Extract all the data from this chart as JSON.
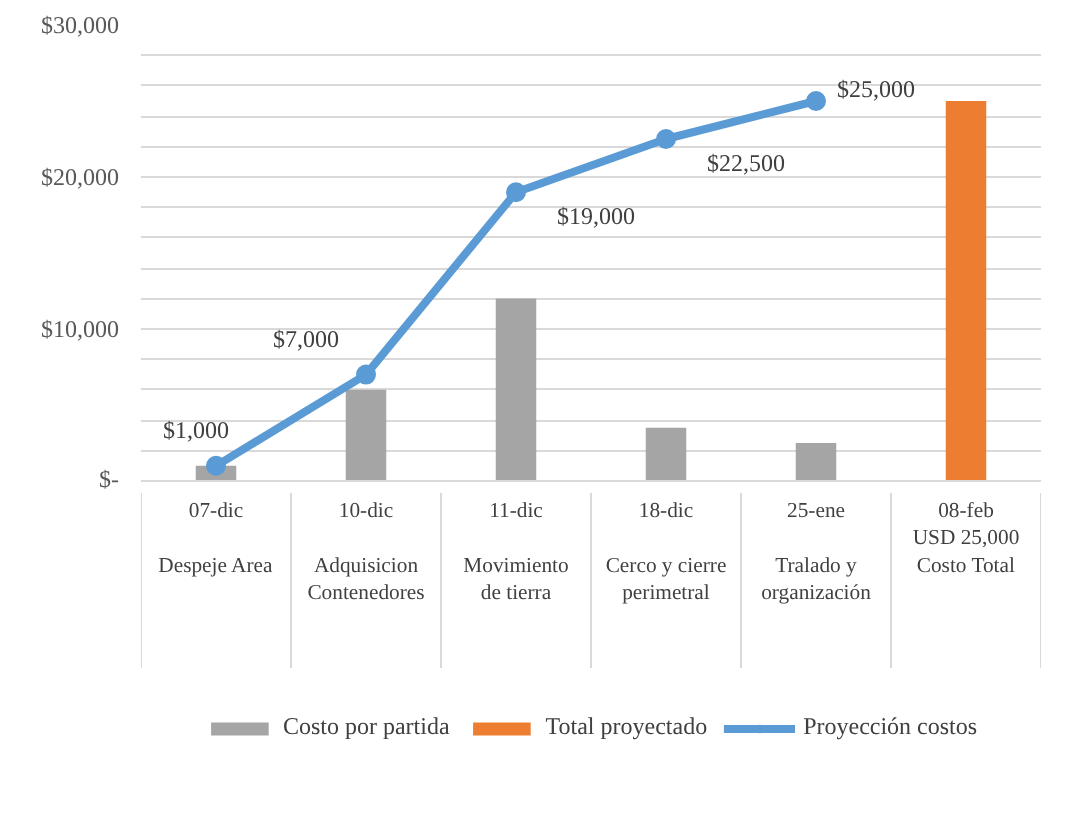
{
  "chart_data": {
    "type": "bar",
    "stacked": true,
    "categories": [
      "07-dic\n\nDespeje Area",
      "10-dic\n\nAdquisicion\nContenedores",
      "11-dic\n\nMovimiento\nde tierra",
      "18-dic\n\nCerco y cierre\nperimetral",
      "25-ene\n\nTralado y\norganización",
      "08-feb\nUSD 25,000\nCosto Total"
    ],
    "series": [
      {
        "name": "Costo por partida",
        "color": "#a5a5a5",
        "values": [
          1000,
          6000,
          12000,
          3500,
          2500,
          null
        ]
      },
      {
        "name": "Total proyectado",
        "color": "#ed7d31",
        "values": [
          null,
          null,
          null,
          null,
          null,
          25000
        ]
      },
      {
        "name": "Proyección costos",
        "type": "line",
        "color": "#5b9bd5",
        "marker": "circle",
        "values": [
          1000,
          7000,
          19000,
          22500,
          25000,
          null
        ],
        "value_labels": [
          "$1,000",
          "$7,000",
          "$19,000",
          "$22,500",
          "$25,000",
          null
        ]
      }
    ],
    "ylim": [
      0,
      30000
    ],
    "yticks": [
      {
        "value": 0,
        "label": "$-"
      },
      {
        "value": 2000,
        "label": null
      },
      {
        "value": 4000,
        "label": null
      },
      {
        "value": 6000,
        "label": null
      },
      {
        "value": 8000,
        "label": null
      },
      {
        "value": 10000,
        "label": "$10,000"
      },
      {
        "value": 12000,
        "label": null
      },
      {
        "value": 14000,
        "label": null
      },
      {
        "value": 16000,
        "label": null
      },
      {
        "value": 18000,
        "label": null
      },
      {
        "value": 20000,
        "label": "$20,000"
      },
      {
        "value": 22000,
        "label": null
      },
      {
        "value": 24000,
        "label": null
      },
      {
        "value": 26000,
        "label": null
      },
      {
        "value": 28000,
        "label": null
      },
      {
        "value": 30000,
        "label": "$30,000"
      }
    ],
    "grid": "y",
    "legend": "bottom"
  }
}
